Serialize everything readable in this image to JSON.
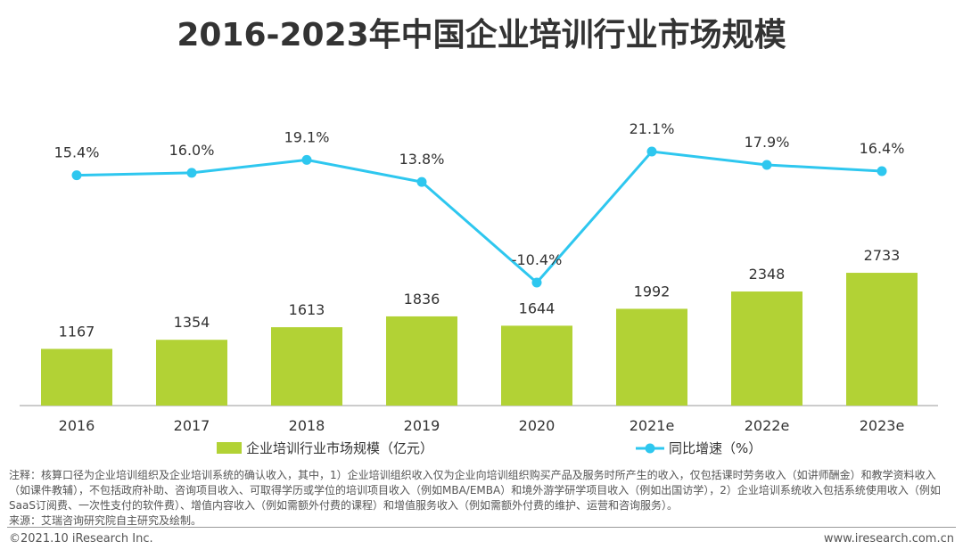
{
  "chart_data": {
    "type": "bar+line",
    "title": "2016-2023年中国企业培训行业市场规模",
    "categories": [
      "2016",
      "2017",
      "2018",
      "2019",
      "2020",
      "2021e",
      "2022e",
      "2023e"
    ],
    "series": [
      {
        "name": "企业培训行业市场规模（亿元）",
        "type": "bar",
        "color": "#b2d235",
        "values": [
          1167,
          1354,
          1613,
          1836,
          1644,
          1992,
          2348,
          2733
        ]
      },
      {
        "name": "同比增速（%）",
        "type": "line",
        "color": "#2ec7ef",
        "values": [
          15.4,
          16.0,
          19.1,
          13.8,
          -10.4,
          21.1,
          17.9,
          16.4
        ]
      }
    ],
    "legend": "bottom",
    "grid": false
  },
  "notes": "注释：核算口径为企业培训组织及企业培训系统的确认收入，其中，1）企业培训组织收入仅为企业向培训组织购买产品及服务时所产生的收入，仅包括课时劳务收入（如讲师酬金）和教学资料收入（如课件教辅），不包括政府补助、咨询项目收入、可取得学历或学位的培训项目收入（例如MBA/EMBA）和境外游学研学项目收入（例如出国访学），2）企业培训系统收入包括系统使用收入（例如SaaS订阅费、一次性支付的软件费）、增值内容收入（例如需额外付费的课程）和增值服务收入（例如需额外付费的维护、运营和咨询服务）。",
  "source": "来源：艾瑞咨询研究院自主研究及绘制。",
  "footer": {
    "copyright": "©2021.10 iResearch Inc.",
    "website": "www.iresearch.com.cn"
  }
}
